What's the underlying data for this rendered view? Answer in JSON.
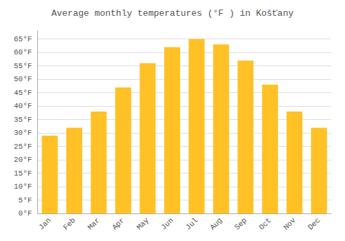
{
  "chart_data": {
    "type": "bar",
    "title": "Average monthly temperatures (°F ) in Košťany",
    "categories": [
      "Jan",
      "Feb",
      "Mar",
      "Apr",
      "May",
      "Jun",
      "Jul",
      "Aug",
      "Sep",
      "Oct",
      "Nov",
      "Dec"
    ],
    "values": [
      29,
      32,
      38,
      47,
      56,
      62,
      65,
      63,
      57,
      48,
      38,
      32
    ],
    "color": "#FFC125",
    "ylim": [
      0,
      68
    ],
    "yticks": [
      {
        "value": 0,
        "label": "0°F"
      },
      {
        "value": 5,
        "label": "5°F"
      },
      {
        "value": 10,
        "label": "10°F"
      },
      {
        "value": 15,
        "label": "15°F"
      },
      {
        "value": 20,
        "label": "20°F"
      },
      {
        "value": 25,
        "label": "25°F"
      },
      {
        "value": 30,
        "label": "30°F"
      },
      {
        "value": 35,
        "label": "35°F"
      },
      {
        "value": 40,
        "label": "40°F"
      },
      {
        "value": 45,
        "label": "45°F"
      },
      {
        "value": 50,
        "label": "50°F"
      },
      {
        "value": 55,
        "label": "55°F"
      },
      {
        "value": 60,
        "label": "60°F"
      },
      {
        "value": 65,
        "label": "65°F"
      }
    ],
    "grid": true
  }
}
